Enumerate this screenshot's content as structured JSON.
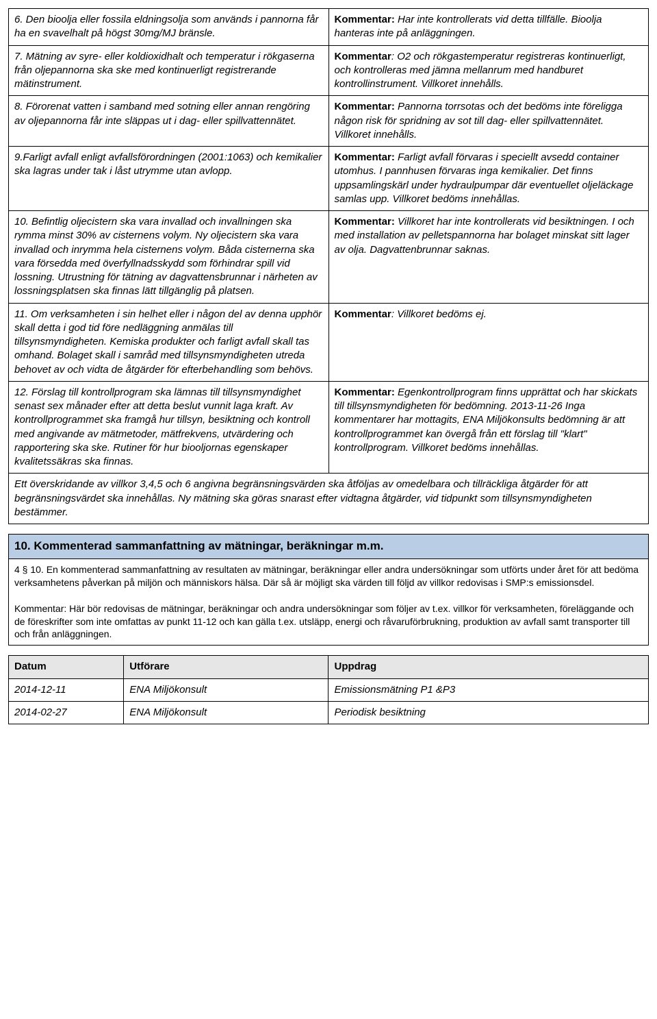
{
  "rows": [
    {
      "left": "6. Den bioolja eller fossila eldningsolja som används i pannorna får ha en svavelhalt på högst 30mg/MJ bränsle.",
      "kommentarLabel": "Kommentar:",
      "right": " Har inte kontrollerats vid detta tillfälle. Bioolja hanteras inte på anläggningen."
    },
    {
      "left": "7. Mätning av syre- eller koldioxidhalt och temperatur i rökgaserna från oljepannorna ska ske med kontinuerligt registrerande mätinstrument.",
      "kommentarLabel": "Kommentar",
      "right": ": O2 och rökgastemperatur registreras kontinuerligt, och kontrolleras med jämna mellanrum med handburet kontrollinstrument. Villkoret innehålls."
    },
    {
      "left": "8. Förorenat vatten i samband med sotning eller annan rengöring av oljepannorna får inte släppas ut i dag- eller spillvattennätet.",
      "kommentarLabel": "Kommentar:",
      "right": " Pannorna torrsotas och det bedöms inte föreligga någon risk för spridning av sot till dag- eller spillvattennätet. Villkoret innehålls."
    },
    {
      "left": "9.Farligt avfall enligt avfallsförordningen (2001:1063) och kemikalier ska lagras under tak i låst utrymme utan avlopp.",
      "kommentarLabel": "Kommentar:",
      "right": " Farligt avfall förvaras i speciellt avsedd container utomhus. I pannhusen förvaras inga kemikalier. Det finns uppsamlingskärl under hydraulpumpar där eventuellet oljeläckage samlas upp. Villkoret bedöms innehållas."
    },
    {
      "left": "10. Befintlig oljecistern ska vara invallad och invallningen ska rymma minst 30% av cisternens volym. Ny oljecistern ska vara invallad och inrymma hela cisternens volym. Båda cisternerna ska vara försedda med överfyllnadsskydd som förhindrar spill vid lossning. Utrustning för tätning av dagvattensbrunnar i närheten av lossningsplatsen ska finnas lätt tillgänglig på platsen.",
      "kommentarLabel": "Kommentar:",
      "right": " Villkoret har inte kontrollerats vid besiktningen. I och med installation av pelletspannorna har bolaget minskat sitt lager av olja. Dagvattenbrunnar saknas."
    },
    {
      "left": "11. Om verksamheten i sin helhet eller i någon del av denna upphör skall detta i god tid före nedläggning anmälas till tillsynsmyndigheten. Kemiska produkter och farligt avfall skall tas omhand. Bolaget skall i samråd med tillsynsmyndigheten utreda behovet av och vidta de åtgärder för efterbehandling som behövs.",
      "kommentarLabel": "Kommentar",
      "right": ": Villkoret bedöms ej."
    },
    {
      "left": "12. Förslag till kontrollprogram ska lämnas till tillsynsmyndighet senast sex månader efter att detta beslut vunnit laga kraft. Av kontrollprogrammet ska framgå hur tillsyn, besiktning och kontroll med angivande av mätmetoder, mätfrekvens, utvärdering och rapportering ska ske. Rutiner för hur biooljornas egenskaper kvalitetssäkras ska finnas.",
      "kommentarLabel": "Kommentar:",
      "right": " Egenkontrollprogram finns upprättat och har skickats till tillsynsmyndigheten för bedömning. 2013-11-26 Inga kommentarer har mottagits, ENA Miljökonsults bedömning är att kontrollprogrammet kan övergå från ett förslag till \"klart\" kontrollprogram. Villkoret bedöms innehållas."
    }
  ],
  "footnote": "Ett överskridande av villkor 3,4,5 och 6 angivna begränsningsvärden ska åtföljas av omedelbara och tillräckliga åtgärder för att begränsningsvärdet ska innehållas. Ny mätning ska göras snarast efter vidtagna åtgärder, vid tidpunkt som tillsynsmyndigheten bestämmer.",
  "section10": {
    "title": "10. Kommenterad sammanfattning av mätningar, beräkningar m.m.",
    "intro": "4 § 10. En kommenterad sammanfattning av resultaten av mätningar, beräkningar eller andra undersökningar som utförts under året för att bedöma verksamhetens påverkan på miljön och människors hälsa. Där så är möjligt ska värden till följd av villkor redovisas i SMP:s emissionsdel.",
    "kommentarLabel": "Kommentar:",
    "kommentarText": "  Här bör redovisas de mätningar, beräkningar och andra undersökningar som följer av t.ex. villkor för verksamheten, föreläggande och de föreskrifter som inte omfattas av punkt 11-12 och kan gälla t.ex. utsläpp, energi och råvaruförbrukning, produktion av avfall samt transporter till och från anläggningen."
  },
  "dataTable": {
    "headers": [
      "Datum",
      "Utförare",
      "Uppdrag"
    ],
    "rows": [
      [
        "2014-12-11",
        "ENA Miljökonsult",
        "Emissionsmätning P1 &P3"
      ],
      [
        "2014-02-27",
        "ENA Miljökonsult",
        "Periodisk besiktning"
      ]
    ]
  }
}
